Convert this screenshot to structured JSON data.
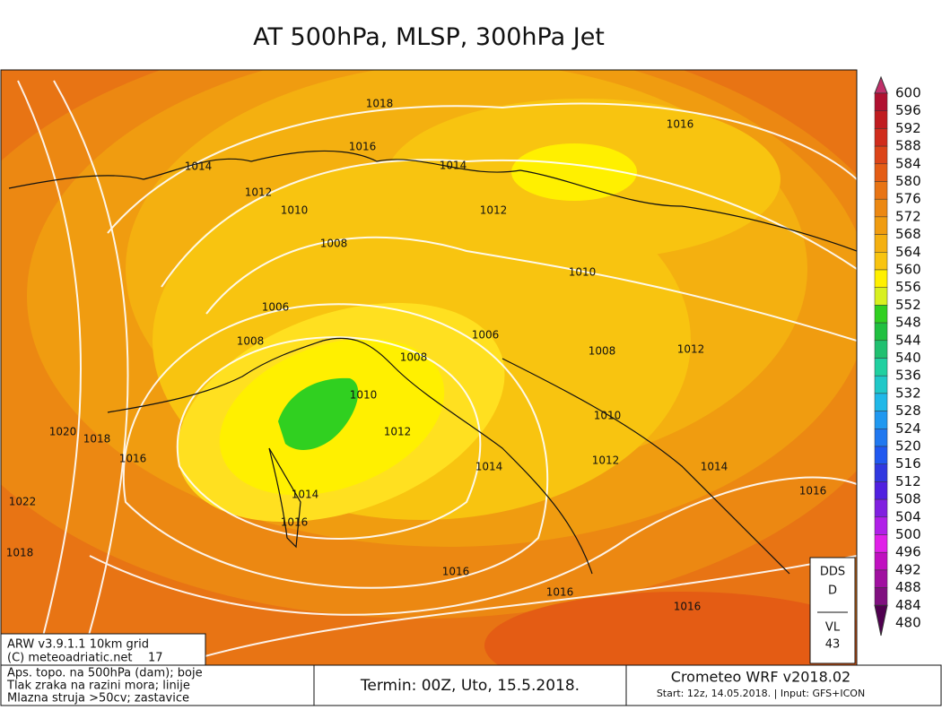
{
  "header": {
    "title": "AT 500hPa, MLSP, 300hPa Jet"
  },
  "colorbar": {
    "levels": [
      {
        "label": "600",
        "color": "#c0306a"
      },
      {
        "label": "596",
        "color": "#b01030"
      },
      {
        "label": "592",
        "color": "#c01c20"
      },
      {
        "label": "588",
        "color": "#d02c1c"
      },
      {
        "label": "584",
        "color": "#dc4418"
      },
      {
        "label": "580",
        "color": "#e45c14"
      },
      {
        "label": "576",
        "color": "#e87414"
      },
      {
        "label": "572",
        "color": "#ec8812"
      },
      {
        "label": "568",
        "color": "#f09c10"
      },
      {
        "label": "564",
        "color": "#f4b010"
      },
      {
        "label": "560",
        "color": "#f8c410"
      },
      {
        "label": "556",
        "color": "#fff000"
      },
      {
        "label": "552",
        "color": "#d8f020"
      },
      {
        "label": "548",
        "color": "#30d020"
      },
      {
        "label": "544",
        "color": "#20c040"
      },
      {
        "label": "540",
        "color": "#20c070"
      },
      {
        "label": "536",
        "color": "#20d0a0"
      },
      {
        "label": "532",
        "color": "#20c8c8"
      },
      {
        "label": "528",
        "color": "#20b8e8"
      },
      {
        "label": "524",
        "color": "#2098f0"
      },
      {
        "label": "520",
        "color": "#2078f0"
      },
      {
        "label": "516",
        "color": "#2058f0"
      },
      {
        "label": "512",
        "color": "#3038e0"
      },
      {
        "label": "508",
        "color": "#5020e0"
      },
      {
        "label": "504",
        "color": "#8020e0"
      },
      {
        "label": "500",
        "color": "#b020e8"
      },
      {
        "label": "496",
        "color": "#e020e8"
      },
      {
        "label": "492",
        "color": "#c010c0"
      },
      {
        "label": "488",
        "color": "#a010a0"
      },
      {
        "label": "484",
        "color": "#801080"
      },
      {
        "label": "480",
        "color": "#500050"
      }
    ]
  },
  "isobar_labels": [
    "1018",
    "1016",
    "1014",
    "1012",
    "1010",
    "1008",
    "1006",
    "1008",
    "1014",
    "1012",
    "1016",
    "1010",
    "1006",
    "1008",
    "1010",
    "1012",
    "1008",
    "1012",
    "1010",
    "1012",
    "1014",
    "1016",
    "1014",
    "1014",
    "1016",
    "1020",
    "1018",
    "1016",
    "1022",
    "1018",
    "1016",
    "1016",
    "1016"
  ],
  "model_box": {
    "line1": "ARW v3.9.1.1 10km grid",
    "line2": "(C) meteoadriatic.net",
    "line2_number": "17"
  },
  "legend_box": {
    "lines": [
      "Aps. topo. na 500hPa (dam); boje",
      "Tlak zraka na razini mora; linije",
      "Mlazna struja >50cv; zastavice"
    ]
  },
  "termin": "Termin: 00Z, Uto, 15.5.2018.",
  "run_box": {
    "title": "Crometeo WRF v2018.02",
    "subtitle": "Start: 12z, 14.05.2018. | Input: GFS+ICON"
  },
  "dds_box": {
    "top": "DDS",
    "top2": "D",
    "bottom": "VL",
    "bottom2": "43"
  }
}
